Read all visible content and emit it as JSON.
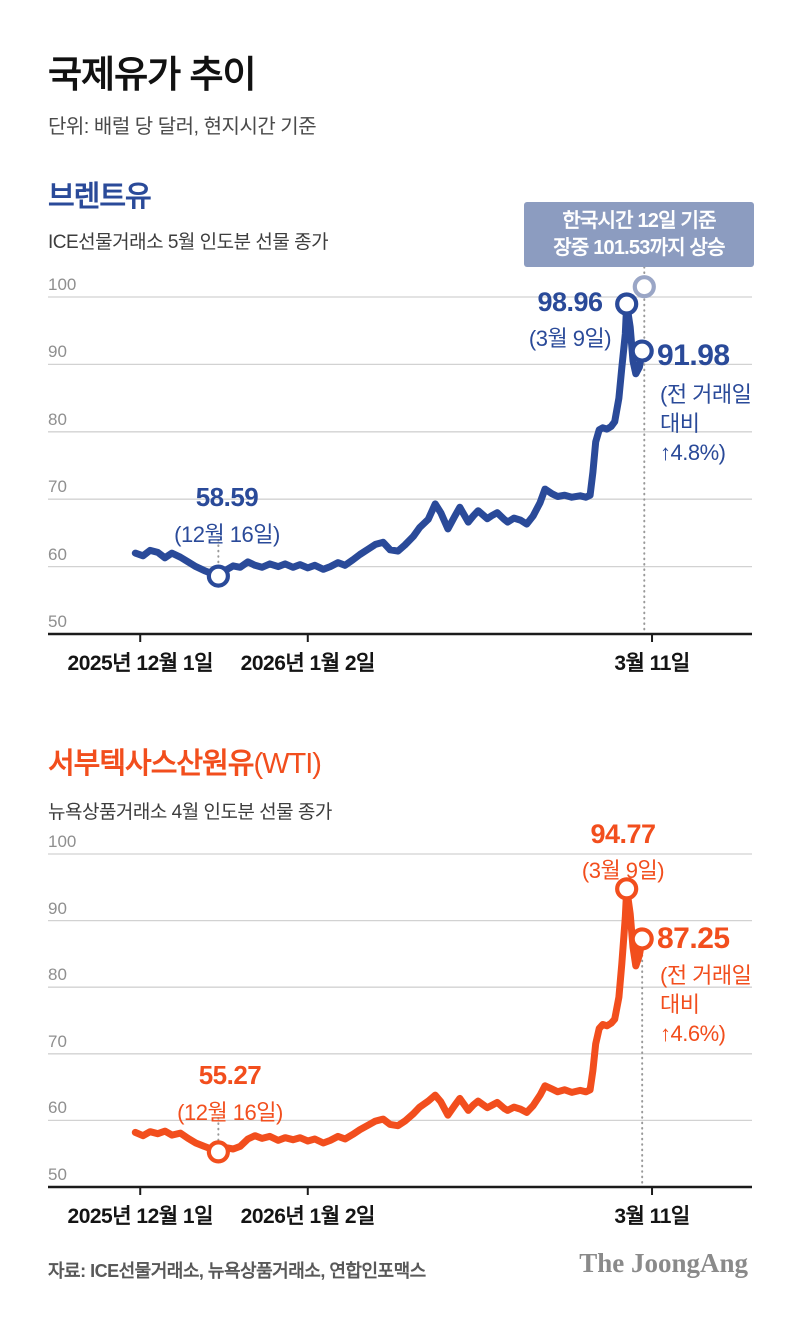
{
  "page": {
    "title": "국제유가 추이",
    "subtitle": "단위: 배럴 당 달러, 현지시간 기준"
  },
  "chart_data": [
    {
      "type": "line",
      "title": "브렌트유",
      "title_suffix": "",
      "subtitle": "ICE선물거래소 5월 인도분 선물 종가",
      "color": "#2a4a99",
      "ylim": [
        50,
        100
      ],
      "yticks": [
        100,
        90,
        80,
        70,
        60,
        50
      ],
      "xticks": [
        {
          "label": "2025년 12월 1일",
          "x": 0.131
        },
        {
          "label": "2026년 1월 2일",
          "x": 0.369
        },
        {
          "label": "3월 11일",
          "x": 0.858
        }
      ],
      "x": [
        0.124,
        0.135,
        0.145,
        0.156,
        0.166,
        0.176,
        0.188,
        0.199,
        0.21,
        0.222,
        0.232,
        0.242,
        0.253,
        0.263,
        0.273,
        0.284,
        0.294,
        0.304,
        0.315,
        0.327,
        0.337,
        0.348,
        0.358,
        0.369,
        0.379,
        0.391,
        0.401,
        0.412,
        0.422,
        0.433,
        0.443,
        0.455,
        0.465,
        0.476,
        0.486,
        0.497,
        0.507,
        0.519,
        0.528,
        0.54,
        0.55,
        0.558,
        0.568,
        0.578,
        0.585,
        0.597,
        0.604,
        0.611,
        0.624,
        0.631,
        0.638,
        0.648,
        0.653,
        0.662,
        0.671,
        0.68,
        0.689,
        0.699,
        0.706,
        0.716,
        0.724,
        0.734,
        0.744,
        0.756,
        0.764,
        0.77,
        0.774,
        0.778,
        0.783,
        0.788,
        0.794,
        0.8,
        0.805,
        0.811,
        0.815,
        0.82,
        0.822,
        0.827,
        0.831,
        0.835,
        0.84,
        0.844
      ],
      "values": [
        62.0,
        61.6,
        62.4,
        62.1,
        61.3,
        62.0,
        61.4,
        60.7,
        60.0,
        59.4,
        59.0,
        58.59,
        59.5,
        60.1,
        59.9,
        60.7,
        60.2,
        59.9,
        60.4,
        60.0,
        60.4,
        59.9,
        60.3,
        59.8,
        60.2,
        59.6,
        60.0,
        60.6,
        60.2,
        61.0,
        61.8,
        62.6,
        63.3,
        63.6,
        62.5,
        62.3,
        63.2,
        64.5,
        65.8,
        67.0,
        69.3,
        68.0,
        65.6,
        67.5,
        68.8,
        66.6,
        67.5,
        68.3,
        67.1,
        67.6,
        68.0,
        67.0,
        66.6,
        67.2,
        66.9,
        66.3,
        67.5,
        69.5,
        71.5,
        70.8,
        70.4,
        70.6,
        70.3,
        70.5,
        70.3,
        70.6,
        74.0,
        78.5,
        80.3,
        80.6,
        80.4,
        80.8,
        81.5,
        85.0,
        89.5,
        94.5,
        98.96,
        95.5,
        90.5,
        88.6,
        89.6,
        91.98
      ],
      "markers": [
        {
          "x": 0.242,
          "value": 58.59
        },
        {
          "x": 0.822,
          "value": 98.96
        },
        {
          "x": 0.844,
          "value": 91.98
        }
      ],
      "annotation": {
        "line1": "한국시간 12일 기준",
        "line2_prefix": "장중 ",
        "line2_value": "101.53",
        "line2_suffix": "까지 상승",
        "marker": {
          "x": 0.847,
          "value": 101.53
        },
        "bg_color": "#8c9cc0"
      },
      "labels": {
        "peak": {
          "value": "98.96",
          "date": "(3월 9일)"
        },
        "last": {
          "value": "91.98",
          "note": [
            "(전 거래일",
            "대비",
            "↑4.8%)"
          ]
        },
        "low": {
          "value": "58.59",
          "date": "(12월 16일)"
        }
      }
    },
    {
      "type": "line",
      "title": "서부텍사스산원유",
      "title_suffix": "(WTI)",
      "subtitle": "뉴욕상품거래소 4월 인도분 선물 종가",
      "color": "#f24e1d",
      "ylim": [
        50,
        100
      ],
      "yticks": [
        100,
        90,
        80,
        70,
        60,
        50
      ],
      "xticks": [
        {
          "label": "2025년 12월 1일",
          "x": 0.131
        },
        {
          "label": "2026년 1월 2일",
          "x": 0.369
        },
        {
          "label": "3월 11일",
          "x": 0.858
        }
      ],
      "x": [
        0.124,
        0.135,
        0.145,
        0.156,
        0.166,
        0.176,
        0.188,
        0.199,
        0.21,
        0.222,
        0.232,
        0.242,
        0.253,
        0.263,
        0.273,
        0.284,
        0.294,
        0.304,
        0.315,
        0.327,
        0.337,
        0.348,
        0.358,
        0.369,
        0.379,
        0.391,
        0.401,
        0.412,
        0.422,
        0.433,
        0.443,
        0.455,
        0.465,
        0.476,
        0.486,
        0.497,
        0.507,
        0.519,
        0.528,
        0.54,
        0.55,
        0.558,
        0.568,
        0.578,
        0.585,
        0.597,
        0.604,
        0.611,
        0.624,
        0.631,
        0.638,
        0.648,
        0.653,
        0.662,
        0.671,
        0.68,
        0.689,
        0.699,
        0.706,
        0.716,
        0.724,
        0.734,
        0.744,
        0.756,
        0.764,
        0.77,
        0.774,
        0.778,
        0.783,
        0.788,
        0.794,
        0.8,
        0.805,
        0.811,
        0.815,
        0.82,
        0.822,
        0.827,
        0.831,
        0.835,
        0.84,
        0.844
      ],
      "values": [
        58.2,
        57.7,
        58.3,
        58.0,
        58.4,
        57.8,
        58.1,
        57.3,
        56.6,
        56.1,
        55.7,
        55.27,
        55.9,
        55.7,
        56.1,
        57.2,
        57.7,
        57.3,
        57.6,
        57.0,
        57.4,
        57.1,
        57.4,
        56.9,
        57.2,
        56.6,
        57.0,
        57.6,
        57.2,
        57.9,
        58.6,
        59.3,
        59.9,
        60.2,
        59.4,
        59.2,
        59.9,
        61.0,
        62.0,
        62.9,
        63.8,
        62.8,
        60.8,
        62.3,
        63.3,
        61.5,
        62.3,
        62.9,
        61.9,
        62.3,
        62.7,
        61.8,
        61.5,
        62.0,
        61.7,
        61.2,
        62.2,
        63.8,
        65.2,
        64.7,
        64.3,
        64.6,
        64.2,
        64.5,
        64.3,
        64.6,
        67.5,
        71.5,
        73.8,
        74.4,
        74.2,
        74.6,
        75.2,
        78.5,
        83.5,
        90.5,
        94.77,
        91.0,
        86.0,
        83.2,
        84.8,
        87.25
      ],
      "markers": [
        {
          "x": 0.242,
          "value": 55.27
        },
        {
          "x": 0.822,
          "value": 94.77
        },
        {
          "x": 0.844,
          "value": 87.25
        }
      ],
      "labels": {
        "peak": {
          "value": "94.77",
          "date": "(3월 9일)"
        },
        "last": {
          "value": "87.25",
          "note": [
            "(전 거래일",
            "대비",
            "↑4.6%)"
          ]
        },
        "low": {
          "value": "55.27",
          "date": "(12월 16일)"
        }
      }
    }
  ],
  "footer": {
    "source": "자료: ICE선물거래소, 뉴욕상품거래소, 연합인포맥스",
    "brand": "The JoongAng"
  }
}
